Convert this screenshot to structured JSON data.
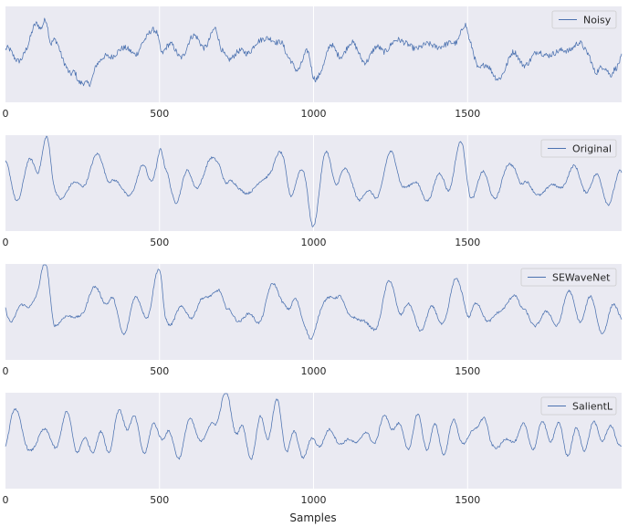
{
  "colors": {
    "axes_bg": "#eaeaf2",
    "grid": "#ffffff",
    "line": "#4c72b0",
    "text": "#262626",
    "legend_bg": "#eaeaf2",
    "legend_border": "#cccccc"
  },
  "chart_data": {
    "type": "line",
    "layout": "4 stacked subplots sharing x-axis ticks",
    "grid": true,
    "xlim": [
      0,
      2000
    ],
    "xticks": [
      0,
      500,
      1000,
      1500
    ],
    "xtick_labels": [
      "0",
      "500",
      "1000",
      "1500"
    ],
    "xlabel": "Samples",
    "legend_position": "upper right",
    "subplots": [
      {
        "name": "Noisy",
        "legend": "Noisy",
        "ylim": [
          -1.0,
          1.0
        ],
        "smooth": 7,
        "anchors": [
          [
            0,
            0.1
          ],
          [
            30,
            -0.15
          ],
          [
            70,
            0.2
          ],
          [
            110,
            0.55
          ],
          [
            130,
            0.9
          ],
          [
            150,
            0.2
          ],
          [
            190,
            -0.1
          ],
          [
            220,
            -0.35
          ],
          [
            240,
            -0.7
          ],
          [
            270,
            -0.55
          ],
          [
            300,
            -0.2
          ],
          [
            330,
            -0.05
          ],
          [
            380,
            0.1
          ],
          [
            420,
            0.05
          ],
          [
            450,
            0.25
          ],
          [
            490,
            0.55
          ],
          [
            510,
            0.1
          ],
          [
            550,
            0.05
          ],
          [
            600,
            0.2
          ],
          [
            640,
            0.3
          ],
          [
            680,
            0.4
          ],
          [
            700,
            0.1
          ],
          [
            740,
            -0.05
          ],
          [
            780,
            0.05
          ],
          [
            820,
            0.25
          ],
          [
            860,
            0.35
          ],
          [
            890,
            0.25
          ],
          [
            920,
            -0.1
          ],
          [
            950,
            -0.25
          ],
          [
            980,
            -0.05
          ],
          [
            1000,
            -0.45
          ],
          [
            1030,
            -0.2
          ],
          [
            1060,
            0.05
          ],
          [
            1100,
            0.15
          ],
          [
            1140,
            0.05
          ],
          [
            1180,
            -0.05
          ],
          [
            1220,
            0.1
          ],
          [
            1260,
            0.25
          ],
          [
            1300,
            0.25
          ],
          [
            1340,
            0.1
          ],
          [
            1380,
            0.25
          ],
          [
            1420,
            0.1
          ],
          [
            1460,
            0.35
          ],
          [
            1490,
            0.5
          ],
          [
            1510,
            0.15
          ],
          [
            1540,
            -0.15
          ],
          [
            1580,
            -0.5
          ],
          [
            1620,
            -0.25
          ],
          [
            1660,
            -0.05
          ],
          [
            1700,
            -0.15
          ],
          [
            1740,
            0.05
          ],
          [
            1780,
            0.0
          ],
          [
            1820,
            0.1
          ],
          [
            1860,
            0.2
          ],
          [
            1890,
            0.05
          ],
          [
            1920,
            -0.35
          ],
          [
            1960,
            -0.4
          ],
          [
            1980,
            -0.15
          ],
          [
            2000,
            -0.1
          ]
        ]
      },
      {
        "name": "Original",
        "legend": "Original",
        "ylim": [
          -1.0,
          1.0
        ],
        "smooth": 0,
        "anchors": [
          [
            0,
            0.15
          ],
          [
            50,
            -0.1
          ],
          [
            100,
            0.45
          ],
          [
            130,
            0.9
          ],
          [
            160,
            -0.2
          ],
          [
            200,
            -0.15
          ],
          [
            250,
            0.0
          ],
          [
            300,
            0.55
          ],
          [
            340,
            0.1
          ],
          [
            380,
            -0.2
          ],
          [
            420,
            0.0
          ],
          [
            460,
            0.2
          ],
          [
            500,
            0.6
          ],
          [
            520,
            0.0
          ],
          [
            560,
            -0.1
          ],
          [
            600,
            0.0
          ],
          [
            640,
            0.2
          ],
          [
            690,
            0.5
          ],
          [
            720,
            0.0
          ],
          [
            760,
            -0.1
          ],
          [
            800,
            -0.2
          ],
          [
            860,
            0.3
          ],
          [
            900,
            0.5
          ],
          [
            930,
            -0.05
          ],
          [
            970,
            0.0
          ],
          [
            1000,
            -0.6
          ],
          [
            1050,
            0.5
          ],
          [
            1080,
            0.2
          ],
          [
            1120,
            0.0
          ],
          [
            1160,
            -0.25
          ],
          [
            1200,
            -0.3
          ],
          [
            1250,
            0.6
          ],
          [
            1290,
            0.0
          ],
          [
            1330,
            -0.1
          ],
          [
            1380,
            -0.2
          ],
          [
            1430,
            0.1
          ],
          [
            1480,
            0.55
          ],
          [
            1510,
            0.0
          ],
          [
            1560,
            -0.05
          ],
          [
            1600,
            -0.1
          ],
          [
            1650,
            0.4
          ],
          [
            1680,
            0.0
          ],
          [
            1720,
            -0.2
          ],
          [
            1780,
            -0.1
          ],
          [
            1840,
            0.2
          ],
          [
            1880,
            0.05
          ],
          [
            1940,
            -0.15
          ],
          [
            1980,
            -0.1
          ],
          [
            2000,
            -0.05
          ]
        ]
      },
      {
        "name": "SEWaveNet",
        "legend": "SEWaveNet",
        "ylim": [
          -1.0,
          1.0
        ],
        "smooth": 0,
        "anchors": [
          [
            0,
            0.15
          ],
          [
            50,
            -0.1
          ],
          [
            100,
            0.45
          ],
          [
            130,
            0.9
          ],
          [
            160,
            -0.2
          ],
          [
            200,
            -0.15
          ],
          [
            250,
            0.0
          ],
          [
            300,
            0.55
          ],
          [
            340,
            0.1
          ],
          [
            380,
            -0.2
          ],
          [
            420,
            0.0
          ],
          [
            460,
            0.2
          ],
          [
            500,
            0.6
          ],
          [
            520,
            0.0
          ],
          [
            560,
            -0.1
          ],
          [
            600,
            0.0
          ],
          [
            640,
            0.2
          ],
          [
            690,
            0.5
          ],
          [
            720,
            0.0
          ],
          [
            760,
            -0.1
          ],
          [
            800,
            -0.2
          ],
          [
            860,
            0.3
          ],
          [
            900,
            0.5
          ],
          [
            930,
            -0.05
          ],
          [
            970,
            0.0
          ],
          [
            1000,
            -0.6
          ],
          [
            1050,
            0.5
          ],
          [
            1080,
            0.2
          ],
          [
            1120,
            0.0
          ],
          [
            1160,
            -0.25
          ],
          [
            1200,
            -0.3
          ],
          [
            1250,
            0.6
          ],
          [
            1290,
            0.0
          ],
          [
            1330,
            -0.1
          ],
          [
            1380,
            -0.2
          ],
          [
            1430,
            0.1
          ],
          [
            1480,
            0.55
          ],
          [
            1510,
            0.0
          ],
          [
            1560,
            -0.05
          ],
          [
            1600,
            -0.1
          ],
          [
            1650,
            0.4
          ],
          [
            1680,
            0.0
          ],
          [
            1720,
            -0.2
          ],
          [
            1780,
            -0.1
          ],
          [
            1840,
            0.2
          ],
          [
            1880,
            0.05
          ],
          [
            1940,
            -0.15
          ],
          [
            1980,
            -0.1
          ],
          [
            2000,
            -0.05
          ]
        ]
      },
      {
        "name": "SalientL",
        "legend": "SalientL",
        "ylim": [
          -1.0,
          1.0
        ],
        "smooth": 0,
        "anchors": [
          [
            0,
            0.1
          ],
          [
            40,
            0.6
          ],
          [
            80,
            -0.3
          ],
          [
            120,
            0.25
          ],
          [
            160,
            -0.1
          ],
          [
            200,
            0.5
          ],
          [
            240,
            -0.2
          ],
          [
            280,
            0.0
          ],
          [
            320,
            -0.1
          ],
          [
            360,
            0.3
          ],
          [
            400,
            0.55
          ],
          [
            440,
            -0.05
          ],
          [
            480,
            0.15
          ],
          [
            520,
            0.2
          ],
          [
            560,
            -0.3
          ],
          [
            600,
            0.4
          ],
          [
            640,
            0.0
          ],
          [
            680,
            0.45
          ],
          [
            720,
            0.9
          ],
          [
            760,
            0.1
          ],
          [
            800,
            -0.1
          ],
          [
            840,
            0.3
          ],
          [
            880,
            0.55
          ],
          [
            920,
            0.0
          ],
          [
            960,
            -0.15
          ],
          [
            1000,
            -0.1
          ],
          [
            1050,
            0.15
          ],
          [
            1100,
            -0.05
          ],
          [
            1150,
            0.05
          ],
          [
            1200,
            0.1
          ],
          [
            1250,
            0.5
          ],
          [
            1290,
            0.0
          ],
          [
            1330,
            0.25
          ],
          [
            1380,
            0.1
          ],
          [
            1420,
            -0.05
          ],
          [
            1460,
            0.25
          ],
          [
            1500,
            0.0
          ],
          [
            1550,
            0.5
          ],
          [
            1580,
            -0.1
          ],
          [
            1620,
            -0.05
          ],
          [
            1680,
            0.2
          ],
          [
            1720,
            0.0
          ],
          [
            1760,
            0.3
          ],
          [
            1800,
            0.05
          ],
          [
            1850,
            -0.05
          ],
          [
            1900,
            0.15
          ],
          [
            1950,
            0.2
          ],
          [
            2000,
            0.0
          ]
        ]
      }
    ]
  }
}
